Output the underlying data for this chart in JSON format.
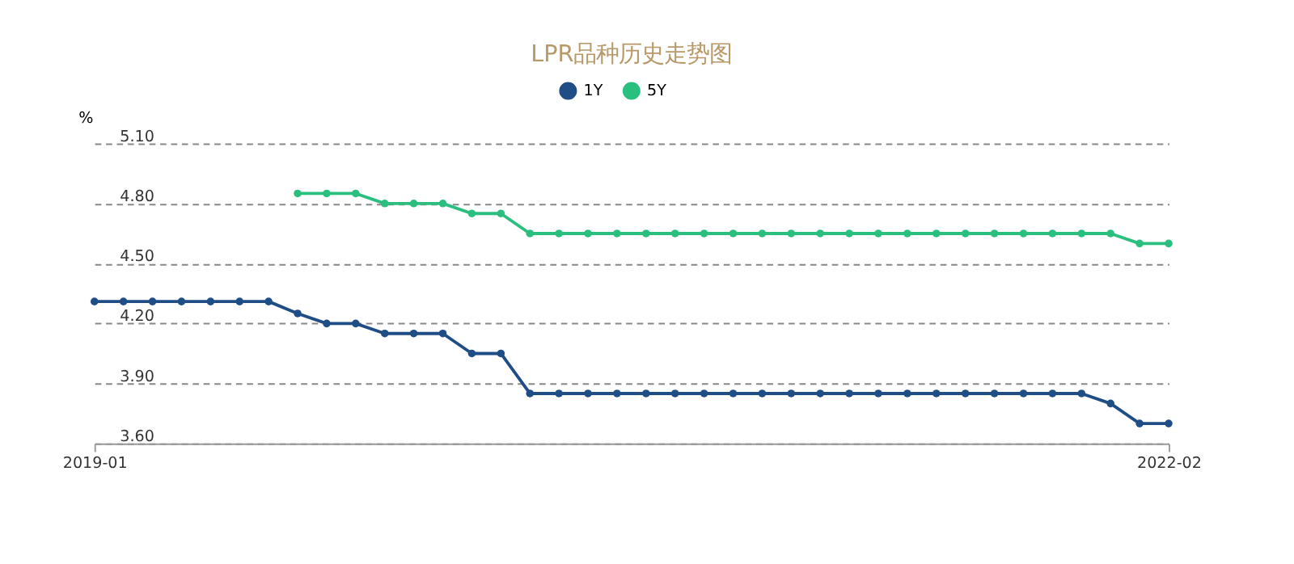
{
  "chart_data": {
    "type": "line",
    "title": "LPR品种历史走势图",
    "ylabel": "%",
    "categories": [
      "2019-01",
      null,
      null,
      null,
      null,
      null,
      null,
      null,
      null,
      null,
      null,
      null,
      null,
      null,
      null,
      null,
      null,
      null,
      null,
      null,
      null,
      null,
      null,
      null,
      null,
      null,
      null,
      null,
      null,
      null,
      null,
      null,
      null,
      null,
      null,
      null,
      null,
      "2022-02"
    ],
    "series": [
      {
        "name": "1Y",
        "color": "#1f4e87",
        "values": [
          4.31,
          4.31,
          4.31,
          4.31,
          4.31,
          4.31,
          4.31,
          4.25,
          4.2,
          4.2,
          4.15,
          4.15,
          4.15,
          4.05,
          4.05,
          3.85,
          3.85,
          3.85,
          3.85,
          3.85,
          3.85,
          3.85,
          3.85,
          3.85,
          3.85,
          3.85,
          3.85,
          3.85,
          3.85,
          3.85,
          3.85,
          3.85,
          3.85,
          3.85,
          3.85,
          3.8,
          3.7,
          3.7
        ]
      },
      {
        "name": "5Y",
        "color": "#2bbf7f",
        "values": [
          null,
          null,
          null,
          null,
          null,
          null,
          null,
          4.85,
          4.85,
          4.85,
          4.8,
          4.8,
          4.8,
          4.75,
          4.75,
          4.65,
          4.65,
          4.65,
          4.65,
          4.65,
          4.65,
          4.65,
          4.65,
          4.65,
          4.65,
          4.65,
          4.65,
          4.65,
          4.65,
          4.65,
          4.65,
          4.65,
          4.65,
          4.65,
          4.65,
          4.65,
          4.6,
          4.6
        ]
      }
    ],
    "ylim": [
      3.6,
      5.1
    ],
    "yticks": [
      {
        "value": 3.6,
        "label": "3.60"
      },
      {
        "value": 3.9,
        "label": "3.90"
      },
      {
        "value": 4.2,
        "label": "4.20"
      },
      {
        "value": 4.5,
        "label": "4.50"
      },
      {
        "value": 4.8,
        "label": "4.80"
      },
      {
        "value": 5.1,
        "label": "5.10"
      }
    ],
    "grid": "y",
    "legend": "top",
    "marker": "circle",
    "line_style": "solid"
  }
}
